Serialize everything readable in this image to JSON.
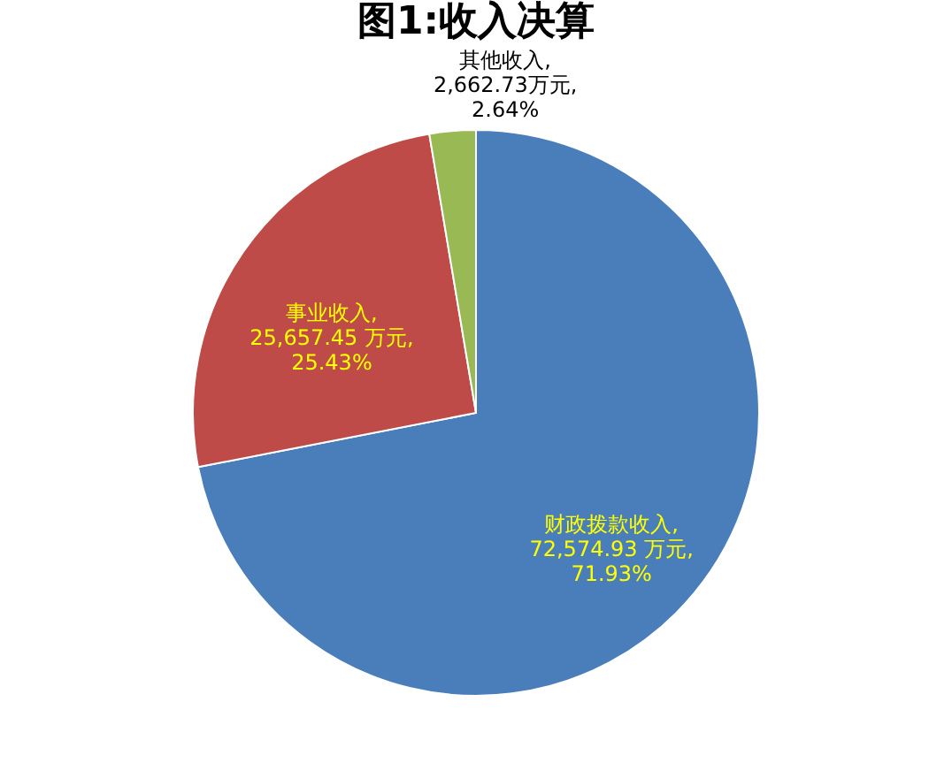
{
  "chart_data": {
    "type": "pie",
    "title": "图1:收入决算",
    "categories": [
      "财政拨款收入",
      "事业收入",
      "其他收入"
    ],
    "values": [
      72574.93,
      25657.45,
      2662.73
    ],
    "colors": [
      "#4a7ebb",
      "#be4b48",
      "#98b954"
    ],
    "value_labels": [
      ",\n72,574.93 万元,\n71.93%",
      ",\n25,657.45 万元,\n25.43%",
      ",\n2,662.73万元,\n2.64%"
    ],
    "legend": false
  }
}
